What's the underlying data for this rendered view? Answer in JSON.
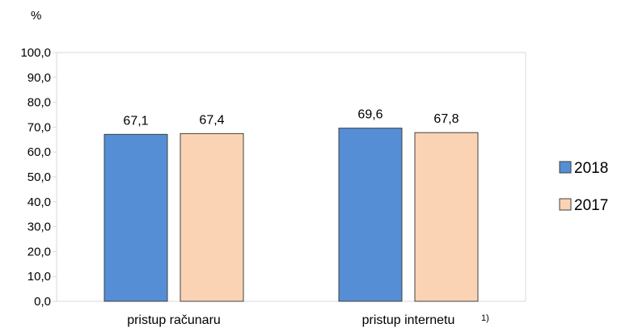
{
  "chart_data": {
    "type": "bar",
    "unit_label": "%",
    "categories": [
      "pristup računaru",
      "pristup internetu"
    ],
    "category_note": [
      "",
      "1)"
    ],
    "series": [
      {
        "name": "2018",
        "values": [
          67.1,
          69.6
        ],
        "labels": [
          "67,1",
          "69,6"
        ],
        "color": "#558ED5"
      },
      {
        "name": "2017",
        "values": [
          67.4,
          67.8
        ],
        "labels": [
          "67,4",
          "67,8"
        ],
        "color": "#FAD3B4"
      }
    ],
    "y_ticks": [
      "0,0",
      "10,0",
      "20,0",
      "30,0",
      "40,0",
      "50,0",
      "60,0",
      "70,0",
      "80,0",
      "90,0",
      "100,0"
    ],
    "ylim": [
      0,
      100
    ],
    "grid": false,
    "legend_position": "right"
  }
}
